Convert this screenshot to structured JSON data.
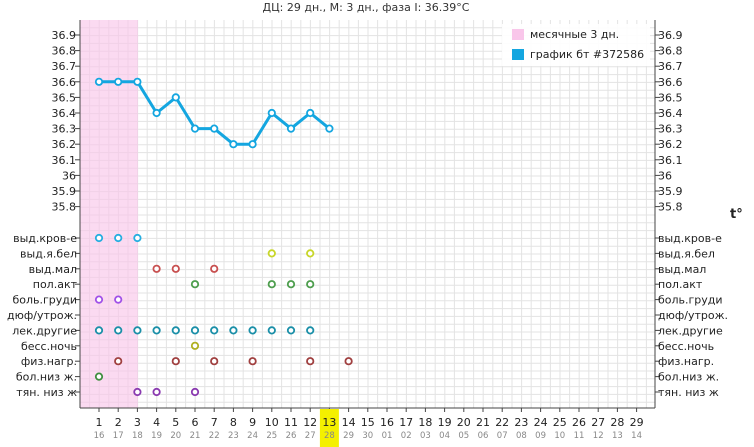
{
  "header": {
    "title": "ДЦ: 29 дн., М: 3 дн., фаза I: 36.39°C"
  },
  "legend": {
    "items": [
      {
        "label": "месячные 3 дн.",
        "color": "#f9c6ea"
      },
      {
        "label": "график бт #372586",
        "color": "#14a6e0"
      }
    ]
  },
  "t_label": "t°",
  "chart_data": {
    "type": "line",
    "title": "ДЦ: 29 дн., М: 3 дн., фаза I: 36.39°C",
    "x": [
      1,
      2,
      3,
      4,
      5,
      6,
      7,
      8,
      9,
      10,
      11,
      12,
      13,
      14,
      15,
      16,
      17,
      18,
      19,
      20,
      21,
      22,
      23,
      24,
      25,
      26,
      27,
      28,
      29
    ],
    "x_dates": [
      "16",
      "17",
      "18",
      "19",
      "20",
      "21",
      "22",
      "23",
      "24",
      "25",
      "26",
      "27",
      "28",
      "29",
      "30",
      "01",
      "02",
      "03",
      "04",
      "05",
      "06",
      "07",
      "08",
      "09",
      "10",
      "11",
      "12",
      "13",
      "14"
    ],
    "highlight_day": 13,
    "ylim": [
      35.8,
      36.9
    ],
    "yticks": [
      "36.9",
      "36.8",
      "36.7",
      "36.6",
      "36.5",
      "36.4",
      "36.3",
      "36.2",
      "36.1",
      "36",
      "35.9",
      "35.8"
    ],
    "menstruation_days": [
      1,
      3
    ],
    "series": [
      {
        "name": "график бт #372586",
        "x": [
          1,
          2,
          3,
          4,
          5,
          6,
          7,
          8,
          9,
          10,
          11,
          12,
          13
        ],
        "values": [
          36.6,
          36.6,
          36.6,
          36.4,
          36.5,
          36.3,
          36.3,
          36.2,
          36.2,
          36.4,
          36.3,
          36.4,
          36.3
        ]
      }
    ],
    "symptoms": [
      {
        "label": "выд.кров-е",
        "color": "#26aee0",
        "days": [
          1,
          2,
          3
        ]
      },
      {
        "label": "выд.я.бел",
        "color": "#c8d62a",
        "days": [
          10,
          12
        ]
      },
      {
        "label": "выд.мал",
        "color": "#c85050",
        "days": [
          4,
          5,
          7
        ]
      },
      {
        "label": "пол.акт",
        "color": "#4e9e4e",
        "days": [
          6,
          10,
          11,
          12
        ]
      },
      {
        "label": "боль.груди",
        "color": "#a050e8",
        "days": [
          1,
          2
        ]
      },
      {
        "label": "дюф/утрож.",
        "color": "#2a7fb8",
        "days": []
      },
      {
        "label": "лек.другие",
        "color": "#1a8fa8",
        "days": [
          1,
          2,
          3,
          4,
          5,
          6,
          7,
          8,
          9,
          10,
          11,
          12
        ]
      },
      {
        "label": "бесс.ночь",
        "color": "#b0b020",
        "days": [
          6
        ]
      },
      {
        "label": "физ.нагр.",
        "color": "#a04040",
        "days": [
          2,
          5,
          7,
          9,
          12,
          14
        ]
      },
      {
        "label": "бол.низ ж.",
        "color": "#3e8e3e",
        "days": [
          1
        ]
      },
      {
        "label": "тян. низ ж",
        "color": "#8a3ab0",
        "days": [
          3,
          4,
          6
        ]
      }
    ]
  }
}
